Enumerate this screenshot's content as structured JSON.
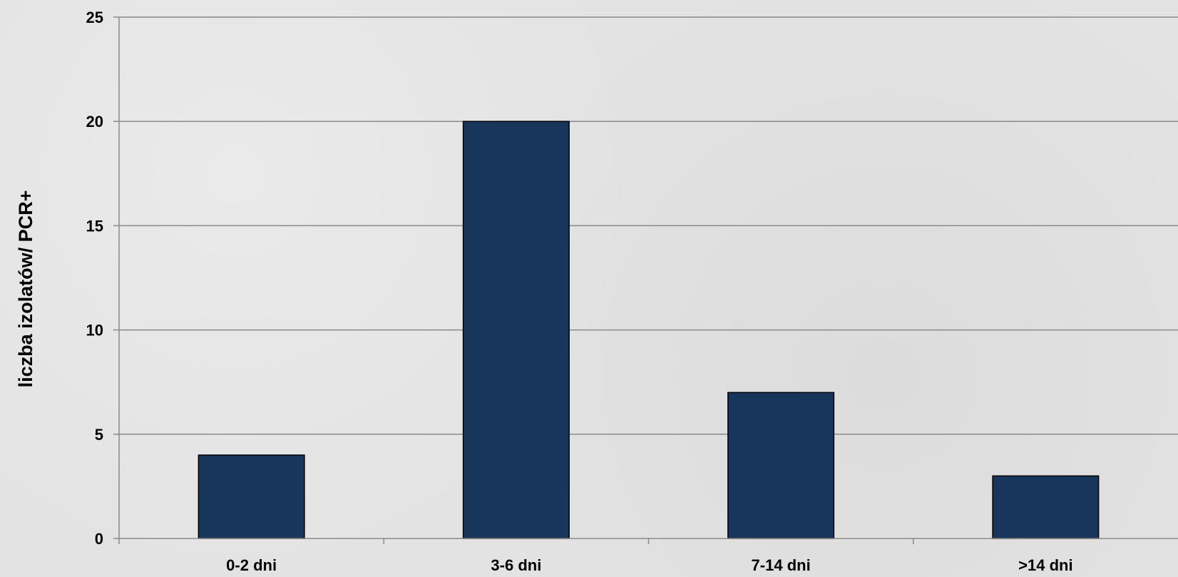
{
  "chart_data": {
    "type": "bar",
    "categories": [
      "0-2 dni",
      "3-6 dni",
      "7-14 dni",
      ">14 dni"
    ],
    "values": [
      4,
      20,
      7,
      3
    ],
    "ylabel": "liczba izolatów/ PCR+",
    "xlabel": "",
    "ylim": [
      0,
      25
    ],
    "yticks": [
      0,
      5,
      10,
      15,
      20,
      25
    ],
    "grid": true,
    "bar_color": "#18365b"
  }
}
